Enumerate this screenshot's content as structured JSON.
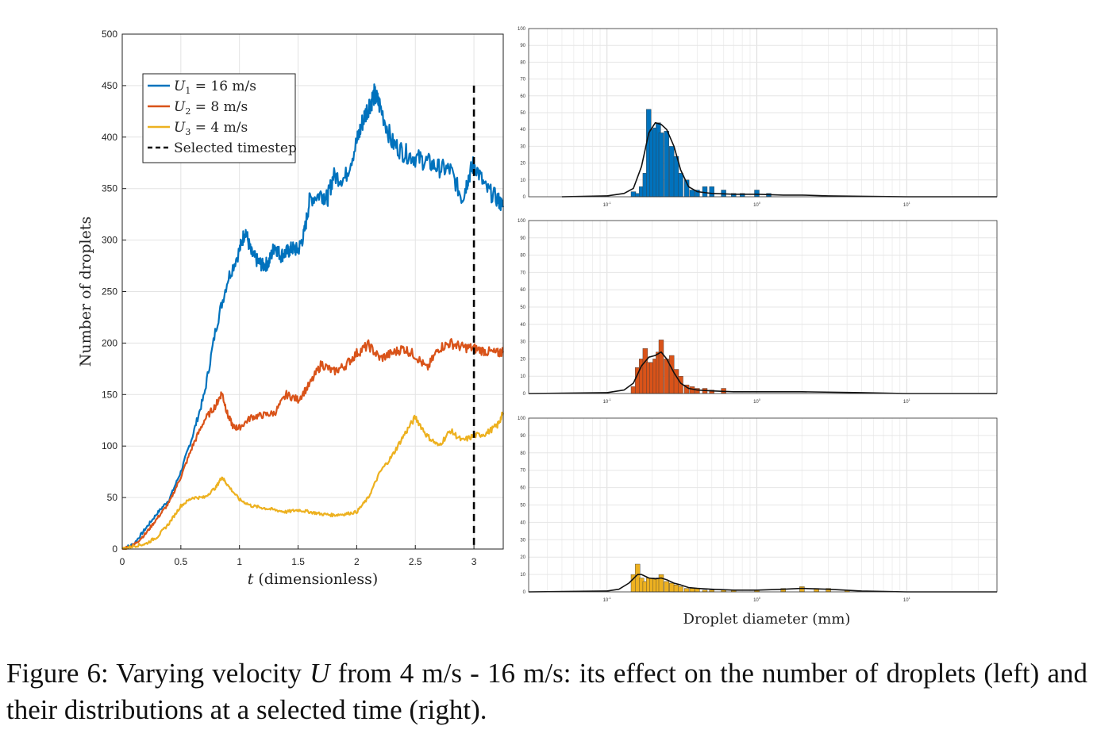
{
  "caption": {
    "label": "Figure 6:",
    "text_before": "Varying velocity",
    "symbol": "U",
    "text_after": "from 4 m/s - 16 m/s: its effect on the number of droplets (left) and their distributions at a selected time (right)."
  },
  "chart_data": [
    {
      "type": "line",
      "title": "",
      "xlabel_symbol": "t",
      "xlabel_rest": " (dimensionless)",
      "ylabel": "Number of droplets",
      "xlim": [
        0,
        3.25
      ],
      "ylim": [
        0,
        500
      ],
      "xticks": [
        0,
        0.5,
        1,
        1.5,
        2,
        2.5,
        3
      ],
      "xtick_labels": [
        "0",
        "0.5",
        "1",
        "1.5",
        "2",
        "2.5",
        "3"
      ],
      "yticks": [
        0,
        50,
        100,
        150,
        200,
        250,
        300,
        350,
        400,
        450,
        500
      ],
      "ytick_labels": [
        "0",
        "50",
        "100",
        "150",
        "200",
        "250",
        "300",
        "350",
        "400",
        "450",
        "500"
      ],
      "grid": true,
      "legend_position": "top-left",
      "selected_timestep": 3.0,
      "series": [
        {
          "name": "U₁ = 16 m/s",
          "sym": "U",
          "sub": "1",
          "rest": " = 16 m/s",
          "color": "#0072BD",
          "x": [
            0,
            0.1,
            0.2,
            0.3,
            0.4,
            0.5,
            0.6,
            0.7,
            0.8,
            0.9,
            1.0,
            1.05,
            1.1,
            1.15,
            1.2,
            1.25,
            1.3,
            1.35,
            1.4,
            1.45,
            1.5,
            1.55,
            1.6,
            1.7,
            1.75,
            1.8,
            1.9,
            2.0,
            2.05,
            2.1,
            2.15,
            2.2,
            2.3,
            2.4,
            2.5,
            2.6,
            2.7,
            2.8,
            2.9,
            2.95,
            3.0,
            3.1,
            3.2,
            3.25
          ],
          "y": [
            0,
            5,
            20,
            35,
            48,
            75,
            110,
            150,
            215,
            262,
            290,
            310,
            287,
            280,
            275,
            278,
            295,
            285,
            288,
            292,
            290,
            305,
            340,
            345,
            340,
            362,
            360,
            395,
            415,
            430,
            441,
            430,
            395,
            385,
            380,
            376,
            370,
            368,
            340,
            360,
            375,
            350,
            340,
            332
          ]
        },
        {
          "name": "U₂ = 8 m/s",
          "sym": "U",
          "sub": "2",
          "rest": " = 8 m/s",
          "color": "#D95319",
          "x": [
            0,
            0.1,
            0.2,
            0.3,
            0.4,
            0.5,
            0.6,
            0.7,
            0.8,
            0.85,
            0.9,
            0.95,
            1.0,
            1.1,
            1.2,
            1.3,
            1.4,
            1.5,
            1.6,
            1.7,
            1.8,
            1.9,
            2.0,
            2.1,
            2.2,
            2.3,
            2.4,
            2.5,
            2.6,
            2.7,
            2.8,
            2.9,
            3.0,
            3.1,
            3.2,
            3.25
          ],
          "y": [
            0,
            4,
            15,
            30,
            45,
            70,
            100,
            125,
            140,
            152,
            130,
            118,
            118,
            128,
            130,
            132,
            150,
            145,
            160,
            180,
            172,
            178,
            190,
            198,
            185,
            190,
            195,
            188,
            175,
            195,
            200,
            196,
            195,
            192,
            190,
            192
          ]
        },
        {
          "name": "U₃ = 4 m/s",
          "sym": "U",
          "sub": "3",
          "rest": " = 4 m/s",
          "color": "#EDB120",
          "x": [
            0,
            0.1,
            0.2,
            0.3,
            0.4,
            0.5,
            0.6,
            0.7,
            0.8,
            0.85,
            0.9,
            1.0,
            1.1,
            1.2,
            1.3,
            1.4,
            1.5,
            1.6,
            1.7,
            1.8,
            1.9,
            2.0,
            2.1,
            2.2,
            2.3,
            2.4,
            2.5,
            2.6,
            2.7,
            2.8,
            2.9,
            3.0,
            3.1,
            3.2,
            3.25
          ],
          "y": [
            0,
            3,
            5,
            12,
            25,
            42,
            50,
            50,
            60,
            70,
            62,
            48,
            42,
            40,
            38,
            36,
            38,
            36,
            34,
            33,
            34,
            36,
            50,
            75,
            90,
            110,
            128,
            110,
            100,
            115,
            105,
            110,
            112,
            120,
            132
          ]
        }
      ],
      "legend_extra": "Selected timestep"
    },
    {
      "type": "bar",
      "scale_x": "log",
      "xlim": [
        0.03,
        40
      ],
      "ylim": [
        0,
        100
      ],
      "yticks": [
        0,
        10,
        20,
        30,
        40,
        50,
        60,
        70,
        80,
        90,
        100
      ],
      "xtick_exponents": [
        "-1",
        "0",
        "1"
      ],
      "color": "#0072BD",
      "x": [
        0.15,
        0.16,
        0.17,
        0.18,
        0.19,
        0.2,
        0.21,
        0.22,
        0.23,
        0.25,
        0.27,
        0.29,
        0.31,
        0.34,
        0.37,
        0.4,
        0.45,
        0.5,
        0.6,
        0.7,
        0.8,
        1.0,
        1.2
      ],
      "y": [
        3,
        2,
        6,
        14,
        52,
        40,
        41,
        44,
        38,
        39,
        30,
        24,
        14,
        10,
        4,
        4,
        6,
        6,
        4,
        2,
        2,
        4,
        2
      ],
      "kde_x": [
        0.05,
        0.1,
        0.13,
        0.15,
        0.17,
        0.19,
        0.21,
        0.23,
        0.25,
        0.28,
        0.31,
        0.35,
        0.4,
        0.5,
        0.7,
        1.0,
        1.5,
        2.0,
        3.0,
        5.0,
        10,
        40
      ],
      "kde_y": [
        0,
        0.5,
        2,
        5,
        18,
        38,
        44,
        43,
        40,
        30,
        16,
        6,
        3,
        2,
        1.5,
        1.5,
        1,
        1,
        0.5,
        0.3,
        0,
        0
      ]
    },
    {
      "type": "bar",
      "scale_x": "log",
      "xlim": [
        0.03,
        40
      ],
      "ylim": [
        0,
        100
      ],
      "yticks": [
        0,
        10,
        20,
        30,
        40,
        50,
        60,
        70,
        80,
        90,
        100
      ],
      "xtick_exponents": [
        "-1",
        "0",
        "1"
      ],
      "color": "#D95319",
      "x": [
        0.15,
        0.16,
        0.17,
        0.18,
        0.19,
        0.2,
        0.21,
        0.22,
        0.23,
        0.25,
        0.27,
        0.29,
        0.31,
        0.34,
        0.37,
        0.4,
        0.45,
        0.5,
        0.6
      ],
      "y": [
        4,
        15,
        20,
        26,
        18,
        18,
        20,
        24,
        31,
        20,
        22,
        14,
        10,
        5,
        4,
        3,
        3,
        2,
        3
      ],
      "kde_x": [
        0.03,
        0.1,
        0.13,
        0.15,
        0.17,
        0.19,
        0.21,
        0.23,
        0.25,
        0.28,
        0.31,
        0.35,
        0.4,
        0.5,
        0.7,
        1.0,
        2.0,
        5.0,
        10,
        40
      ],
      "kde_y": [
        0,
        0.5,
        2,
        6,
        16,
        21,
        22,
        24,
        20,
        12,
        6,
        3,
        2,
        1.5,
        1,
        1,
        1,
        0.5,
        0,
        0
      ]
    },
    {
      "type": "bar",
      "scale_x": "log",
      "xlim": [
        0.03,
        40
      ],
      "ylim": [
        0,
        100
      ],
      "yticks": [
        0,
        10,
        20,
        30,
        40,
        50,
        60,
        70,
        80,
        90,
        100
      ],
      "xtick_exponents": [
        "-1",
        "0",
        "1"
      ],
      "xlabel": "Droplet diameter (mm)",
      "color": "#EDB120",
      "x": [
        0.15,
        0.16,
        0.17,
        0.18,
        0.19,
        0.2,
        0.21,
        0.22,
        0.23,
        0.25,
        0.27,
        0.29,
        0.31,
        0.34,
        0.37,
        0.4,
        0.45,
        0.5,
        0.6,
        0.7,
        1.0,
        1.5,
        2.0,
        2.5,
        3.0,
        4.0
      ],
      "y": [
        10,
        16,
        8,
        6,
        8,
        8,
        8,
        8,
        10,
        6,
        5,
        4,
        3,
        2,
        2,
        2,
        1,
        1,
        1,
        1,
        1,
        2,
        3,
        2,
        2,
        1
      ],
      "kde_x": [
        0.03,
        0.1,
        0.12,
        0.14,
        0.16,
        0.17,
        0.19,
        0.21,
        0.23,
        0.25,
        0.28,
        0.31,
        0.35,
        0.4,
        0.5,
        0.7,
        1.0,
        1.5,
        2.0,
        3.0,
        5.0,
        10,
        40
      ],
      "kde_y": [
        0,
        0.5,
        1.5,
        5,
        10,
        10,
        8,
        7.5,
        8,
        7,
        5,
        4,
        2.5,
        2,
        1.5,
        1,
        1,
        1.5,
        2,
        1.5,
        0.5,
        0,
        0
      ]
    }
  ]
}
